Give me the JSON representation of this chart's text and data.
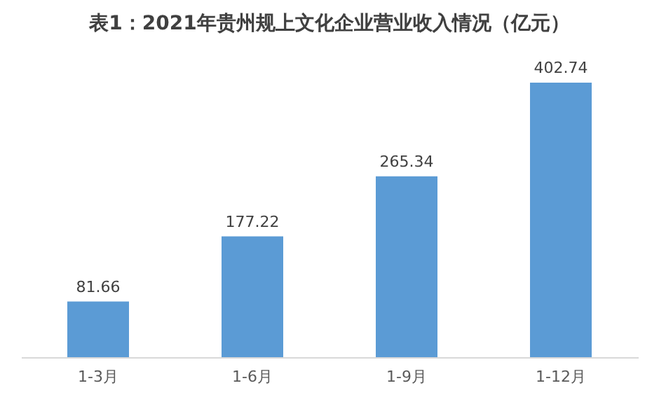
{
  "chart_data": {
    "type": "bar",
    "title": "表1：2021年贵州规上文化企业营业收入情况（亿元）",
    "categories": [
      "1-3月",
      "1-6月",
      "1-9月",
      "1-12月"
    ],
    "values": [
      81.66,
      177.22,
      265.34,
      402.74
    ],
    "color": "#5b9bd5",
    "data_labels": true
  }
}
